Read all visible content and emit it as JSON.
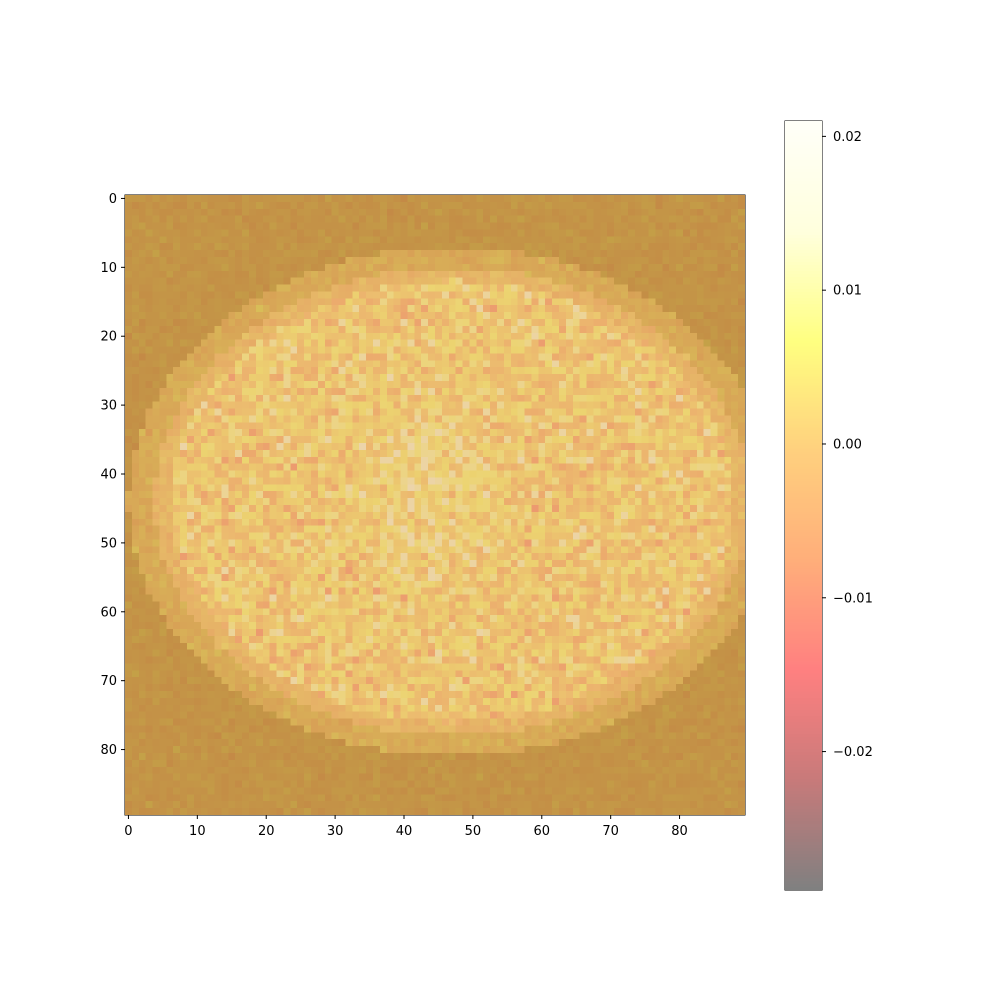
{
  "chart_data": {
    "type": "heatmap",
    "title": "",
    "xlabel": "",
    "ylabel": "",
    "grid": false,
    "image": {
      "rows": 90,
      "cols": 90,
      "origin": "upper",
      "description_of_values": "brain MRI axial slice (background image) overlaid with a noisy voxel-wise map; positive values concentrated near the midline, values in the range of the colorbar",
      "brain_region": {
        "center_x": 47,
        "center_y": 44,
        "radius_x": 42,
        "radius_y": 33
      }
    },
    "x_axis": {
      "lim": [
        -0.5,
        89.5
      ],
      "ticks": [
        0,
        10,
        20,
        30,
        40,
        50,
        60,
        70,
        80
      ],
      "tick_labels": [
        "0",
        "10",
        "20",
        "30",
        "40",
        "50",
        "60",
        "70",
        "80"
      ]
    },
    "y_axis": {
      "lim": [
        89.5,
        -0.5
      ],
      "inverted": true,
      "ticks": [
        0,
        10,
        20,
        30,
        40,
        50,
        60,
        70,
        80
      ],
      "tick_labels": [
        "0",
        "10",
        "20",
        "30",
        "40",
        "50",
        "60",
        "70",
        "80"
      ]
    },
    "colorbar": {
      "vmin": -0.029,
      "vmax": 0.021,
      "ticks": [
        0.02,
        0.01,
        0.0,
        -0.01,
        -0.02
      ],
      "tick_labels": [
        "0.02",
        "0.01",
        "0.00",
        "−0.01",
        "−0.02"
      ],
      "colormap": "afmhot-like (gray → red → orange → yellow → white)",
      "colormap_stops": [
        "#808080",
        "#c87a7a",
        "#ff8080",
        "#ffae7a",
        "#ffd07e",
        "#ffff80",
        "#ffffdd",
        "#fffff8"
      ],
      "alpha": 0.5
    },
    "underlay_colors": {
      "background": "#8a5a10",
      "brain": "#d9a860",
      "skull_ring": "#b08030"
    }
  }
}
